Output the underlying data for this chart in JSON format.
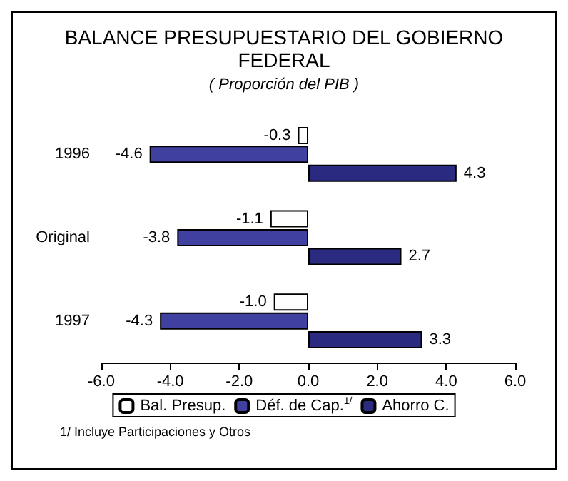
{
  "chart_data": {
    "type": "bar",
    "orientation": "horizontal",
    "title": "BALANCE PRESUPUESTARIO DEL GOBIERNO\nFEDERAL",
    "subtitle": "( Proporción del PIB )",
    "categories": [
      "1996",
      "Original",
      "1997"
    ],
    "series": [
      {
        "name": "Bal. Presup.",
        "color": "#ffffff",
        "values": [
          -0.3,
          -1.1,
          -1.0
        ],
        "value_labels": [
          "-0.3",
          "-1.1",
          "-1.0"
        ]
      },
      {
        "name": "Déf. de Cap.$^{1/}$",
        "color": "#4040a0",
        "values": [
          -4.6,
          -3.8,
          -4.3
        ],
        "value_labels": [
          "-4.6",
          "-3.8",
          "-4.3"
        ]
      },
      {
        "name": "Ahorro C.",
        "color": "#2a2a80",
        "values": [
          4.3,
          2.7,
          3.3
        ],
        "value_labels": [
          "4.3",
          "2.7",
          "3.3"
        ]
      }
    ],
    "xlim": [
      -6,
      6
    ],
    "xticks": [
      {
        "value": -6,
        "label": "-6.0"
      },
      {
        "value": -4,
        "label": "-4.0"
      },
      {
        "value": -2,
        "label": "-2.0"
      },
      {
        "value": 0,
        "label": "0.0"
      },
      {
        "value": 2,
        "label": "2.0"
      },
      {
        "value": 4,
        "label": "4.0"
      },
      {
        "value": 6,
        "label": "6.0"
      }
    ],
    "grid": false,
    "legend": "bottom",
    "annotations": [
      "1/ Incluye Participaciones y Otros"
    ]
  }
}
